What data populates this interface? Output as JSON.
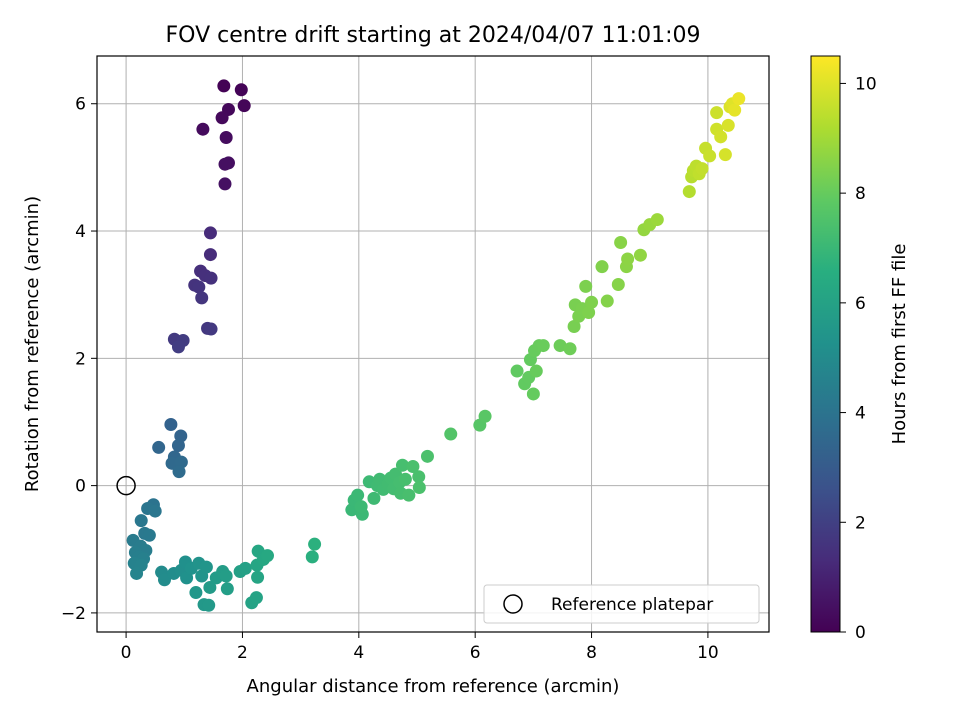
{
  "chart_data": {
    "type": "scatter",
    "title": "FOV centre drift starting at 2024/04/07 11:01:09",
    "xlabel": "Angular distance from reference (arcmin)",
    "ylabel": "Rotation from reference (arcmin)",
    "xlim": [
      -0.5,
      11.05
    ],
    "ylim": [
      -2.3,
      6.75
    ],
    "x_ticks": [
      0,
      2,
      4,
      6,
      8,
      10
    ],
    "y_ticks": [
      -2,
      0,
      2,
      4,
      6
    ],
    "grid": true,
    "legend": {
      "position": "lower-right",
      "entries": [
        "Reference platepar"
      ]
    },
    "reference_point": {
      "label": "Reference platepar",
      "x": 0,
      "y": 0
    },
    "colorbar": {
      "label": "Hours from first FF file",
      "range": [
        0,
        10.5
      ],
      "ticks": [
        0,
        2,
        4,
        6,
        8,
        10
      ],
      "colormap": "viridis"
    },
    "points": [
      {
        "x": 1.68,
        "y": 6.28,
        "h": 0.05
      },
      {
        "x": 1.98,
        "y": 6.22,
        "h": 0.1
      },
      {
        "x": 2.03,
        "y": 5.97,
        "h": 0.15
      },
      {
        "x": 1.76,
        "y": 5.91,
        "h": 0.2
      },
      {
        "x": 1.65,
        "y": 5.78,
        "h": 0.25
      },
      {
        "x": 1.32,
        "y": 5.6,
        "h": 0.3
      },
      {
        "x": 1.72,
        "y": 5.47,
        "h": 0.35
      },
      {
        "x": 1.76,
        "y": 5.07,
        "h": 0.4
      },
      {
        "x": 1.7,
        "y": 5.05,
        "h": 0.45
      },
      {
        "x": 1.7,
        "y": 4.74,
        "h": 0.5
      },
      {
        "x": 1.45,
        "y": 3.97,
        "h": 1.3
      },
      {
        "x": 1.45,
        "y": 3.63,
        "h": 1.35
      },
      {
        "x": 1.28,
        "y": 3.37,
        "h": 1.4
      },
      {
        "x": 1.36,
        "y": 3.3,
        "h": 1.45
      },
      {
        "x": 1.46,
        "y": 3.26,
        "h": 1.5
      },
      {
        "x": 1.18,
        "y": 3.15,
        "h": 1.55
      },
      {
        "x": 1.25,
        "y": 3.12,
        "h": 1.6
      },
      {
        "x": 1.3,
        "y": 2.95,
        "h": 1.65
      },
      {
        "x": 1.4,
        "y": 2.47,
        "h": 1.7
      },
      {
        "x": 1.46,
        "y": 2.46,
        "h": 1.75
      },
      {
        "x": 0.83,
        "y": 2.3,
        "h": 1.8
      },
      {
        "x": 0.98,
        "y": 2.28,
        "h": 1.85
      },
      {
        "x": 0.9,
        "y": 2.18,
        "h": 1.9
      },
      {
        "x": 0.77,
        "y": 0.96,
        "h": 3.3
      },
      {
        "x": 0.94,
        "y": 0.78,
        "h": 3.35
      },
      {
        "x": 0.9,
        "y": 0.63,
        "h": 3.4
      },
      {
        "x": 0.56,
        "y": 0.6,
        "h": 3.45
      },
      {
        "x": 0.83,
        "y": 0.45,
        "h": 3.5
      },
      {
        "x": 0.79,
        "y": 0.35,
        "h": 3.55
      },
      {
        "x": 0.95,
        "y": 0.37,
        "h": 3.6
      },
      {
        "x": 0.91,
        "y": 0.22,
        "h": 3.65
      },
      {
        "x": 0.47,
        "y": -0.3,
        "h": 4.0
      },
      {
        "x": 0.37,
        "y": -0.36,
        "h": 4.05
      },
      {
        "x": 0.5,
        "y": -0.4,
        "h": 4.1
      },
      {
        "x": 0.26,
        "y": -0.55,
        "h": 4.15
      },
      {
        "x": 0.32,
        "y": -0.75,
        "h": 4.2
      },
      {
        "x": 0.4,
        "y": -0.78,
        "h": 4.25
      },
      {
        "x": 0.12,
        "y": -0.86,
        "h": 4.3
      },
      {
        "x": 0.25,
        "y": -0.95,
        "h": 4.35
      },
      {
        "x": 0.34,
        "y": -1.02,
        "h": 4.4
      },
      {
        "x": 0.16,
        "y": -1.05,
        "h": 4.45
      },
      {
        "x": 0.22,
        "y": -1.12,
        "h": 4.5
      },
      {
        "x": 0.3,
        "y": -1.15,
        "h": 4.55
      },
      {
        "x": 0.14,
        "y": -1.22,
        "h": 4.6
      },
      {
        "x": 0.26,
        "y": -1.25,
        "h": 4.65
      },
      {
        "x": 0.18,
        "y": -1.38,
        "h": 4.7
      },
      {
        "x": 0.61,
        "y": -1.36,
        "h": 5.0
      },
      {
        "x": 0.66,
        "y": -1.48,
        "h": 5.05
      },
      {
        "x": 0.82,
        "y": -1.38,
        "h": 5.1
      },
      {
        "x": 0.95,
        "y": -1.33,
        "h": 5.15
      },
      {
        "x": 1.02,
        "y": -1.2,
        "h": 5.2
      },
      {
        "x": 1.04,
        "y": -1.45,
        "h": 5.25
      },
      {
        "x": 1.12,
        "y": -1.3,
        "h": 5.3
      },
      {
        "x": 1.25,
        "y": -1.22,
        "h": 5.35
      },
      {
        "x": 1.3,
        "y": -1.42,
        "h": 5.4
      },
      {
        "x": 1.38,
        "y": -1.28,
        "h": 5.45
      },
      {
        "x": 1.2,
        "y": -1.68,
        "h": 5.5
      },
      {
        "x": 1.34,
        "y": -1.87,
        "h": 5.55
      },
      {
        "x": 1.42,
        "y": -1.88,
        "h": 5.6
      },
      {
        "x": 1.44,
        "y": -1.6,
        "h": 5.65
      },
      {
        "x": 1.55,
        "y": -1.45,
        "h": 5.7
      },
      {
        "x": 1.66,
        "y": -1.35,
        "h": 5.75
      },
      {
        "x": 1.72,
        "y": -1.42,
        "h": 5.8
      },
      {
        "x": 1.74,
        "y": -1.62,
        "h": 5.85
      },
      {
        "x": 1.96,
        "y": -1.35,
        "h": 5.9
      },
      {
        "x": 2.05,
        "y": -1.3,
        "h": 5.95
      },
      {
        "x": 2.16,
        "y": -1.84,
        "h": 6.0
      },
      {
        "x": 2.24,
        "y": -1.76,
        "h": 6.05
      },
      {
        "x": 2.26,
        "y": -1.44,
        "h": 6.1
      },
      {
        "x": 2.25,
        "y": -1.25,
        "h": 6.15
      },
      {
        "x": 2.27,
        "y": -1.03,
        "h": 6.2
      },
      {
        "x": 2.36,
        "y": -1.16,
        "h": 6.25
      },
      {
        "x": 2.43,
        "y": -1.1,
        "h": 6.3
      },
      {
        "x": 3.2,
        "y": -1.12,
        "h": 6.6
      },
      {
        "x": 3.24,
        "y": -0.92,
        "h": 6.65
      },
      {
        "x": 3.88,
        "y": -0.38,
        "h": 7.0
      },
      {
        "x": 3.92,
        "y": -0.23,
        "h": 7.02
      },
      {
        "x": 3.98,
        "y": -0.15,
        "h": 7.04
      },
      {
        "x": 4.06,
        "y": -0.45,
        "h": 7.06
      },
      {
        "x": 4.04,
        "y": -0.33,
        "h": 7.08
      },
      {
        "x": 4.18,
        "y": 0.06,
        "h": 7.1
      },
      {
        "x": 4.26,
        "y": -0.2,
        "h": 7.12
      },
      {
        "x": 4.32,
        "y": 0.0,
        "h": 7.14
      },
      {
        "x": 4.36,
        "y": 0.1,
        "h": 7.16
      },
      {
        "x": 4.42,
        "y": -0.06,
        "h": 7.18
      },
      {
        "x": 4.5,
        "y": 0.02,
        "h": 7.2
      },
      {
        "x": 4.55,
        "y": 0.12,
        "h": 7.22
      },
      {
        "x": 4.6,
        "y": -0.05,
        "h": 7.24
      },
      {
        "x": 4.63,
        "y": 0.18,
        "h": 7.26
      },
      {
        "x": 4.7,
        "y": 0.05,
        "h": 7.28
      },
      {
        "x": 4.72,
        "y": -0.12,
        "h": 7.3
      },
      {
        "x": 4.75,
        "y": 0.32,
        "h": 7.32
      },
      {
        "x": 4.8,
        "y": 0.1,
        "h": 7.34
      },
      {
        "x": 4.86,
        "y": -0.15,
        "h": 7.36
      },
      {
        "x": 4.93,
        "y": 0.3,
        "h": 7.38
      },
      {
        "x": 5.03,
        "y": 0.14,
        "h": 7.4
      },
      {
        "x": 5.04,
        "y": -0.03,
        "h": 7.42
      },
      {
        "x": 5.18,
        "y": 0.46,
        "h": 7.44
      },
      {
        "x": 5.58,
        "y": 0.81,
        "h": 7.6
      },
      {
        "x": 6.08,
        "y": 0.95,
        "h": 7.7
      },
      {
        "x": 6.17,
        "y": 1.09,
        "h": 7.75
      },
      {
        "x": 6.72,
        "y": 1.8,
        "h": 7.9
      },
      {
        "x": 6.85,
        "y": 1.6,
        "h": 7.92
      },
      {
        "x": 6.92,
        "y": 1.7,
        "h": 7.94
      },
      {
        "x": 6.95,
        "y": 1.98,
        "h": 7.96
      },
      {
        "x": 7.0,
        "y": 1.44,
        "h": 7.98
      },
      {
        "x": 7.02,
        "y": 2.12,
        "h": 8.0
      },
      {
        "x": 7.05,
        "y": 1.8,
        "h": 8.02
      },
      {
        "x": 7.1,
        "y": 2.2,
        "h": 8.04
      },
      {
        "x": 7.17,
        "y": 2.2,
        "h": 8.06
      },
      {
        "x": 7.46,
        "y": 2.2,
        "h": 8.1
      },
      {
        "x": 7.63,
        "y": 2.15,
        "h": 8.14
      },
      {
        "x": 7.7,
        "y": 2.5,
        "h": 8.3
      },
      {
        "x": 7.72,
        "y": 2.84,
        "h": 8.32
      },
      {
        "x": 7.78,
        "y": 2.66,
        "h": 8.34
      },
      {
        "x": 7.84,
        "y": 2.78,
        "h": 8.36
      },
      {
        "x": 7.9,
        "y": 3.13,
        "h": 8.38
      },
      {
        "x": 7.95,
        "y": 2.72,
        "h": 8.4
      },
      {
        "x": 8.0,
        "y": 2.88,
        "h": 8.42
      },
      {
        "x": 8.18,
        "y": 3.44,
        "h": 8.46
      },
      {
        "x": 8.27,
        "y": 2.9,
        "h": 8.5
      },
      {
        "x": 8.46,
        "y": 3.16,
        "h": 8.54
      },
      {
        "x": 8.5,
        "y": 3.82,
        "h": 8.58
      },
      {
        "x": 8.6,
        "y": 3.44,
        "h": 8.62
      },
      {
        "x": 8.62,
        "y": 3.56,
        "h": 8.66
      },
      {
        "x": 8.84,
        "y": 3.62,
        "h": 8.72
      },
      {
        "x": 8.9,
        "y": 4.02,
        "h": 8.78
      },
      {
        "x": 9.0,
        "y": 4.1,
        "h": 8.84
      },
      {
        "x": 9.13,
        "y": 4.18,
        "h": 8.9
      },
      {
        "x": 9.68,
        "y": 4.62,
        "h": 9.3
      },
      {
        "x": 9.72,
        "y": 4.85,
        "h": 9.35
      },
      {
        "x": 9.75,
        "y": 4.95,
        "h": 9.4
      },
      {
        "x": 9.8,
        "y": 5.02,
        "h": 9.45
      },
      {
        "x": 9.85,
        "y": 4.9,
        "h": 9.5
      },
      {
        "x": 9.9,
        "y": 4.98,
        "h": 9.55
      },
      {
        "x": 9.96,
        "y": 5.3,
        "h": 9.6
      },
      {
        "x": 10.03,
        "y": 5.18,
        "h": 9.65
      },
      {
        "x": 10.15,
        "y": 5.86,
        "h": 9.7
      },
      {
        "x": 10.15,
        "y": 5.6,
        "h": 9.75
      },
      {
        "x": 10.22,
        "y": 5.48,
        "h": 9.8
      },
      {
        "x": 10.3,
        "y": 5.2,
        "h": 9.85
      },
      {
        "x": 10.35,
        "y": 5.66,
        "h": 9.9
      },
      {
        "x": 10.38,
        "y": 5.95,
        "h": 9.95
      },
      {
        "x": 10.42,
        "y": 6.0,
        "h": 10.0
      },
      {
        "x": 10.46,
        "y": 5.9,
        "h": 10.1
      },
      {
        "x": 10.53,
        "y": 6.08,
        "h": 10.2
      }
    ]
  }
}
